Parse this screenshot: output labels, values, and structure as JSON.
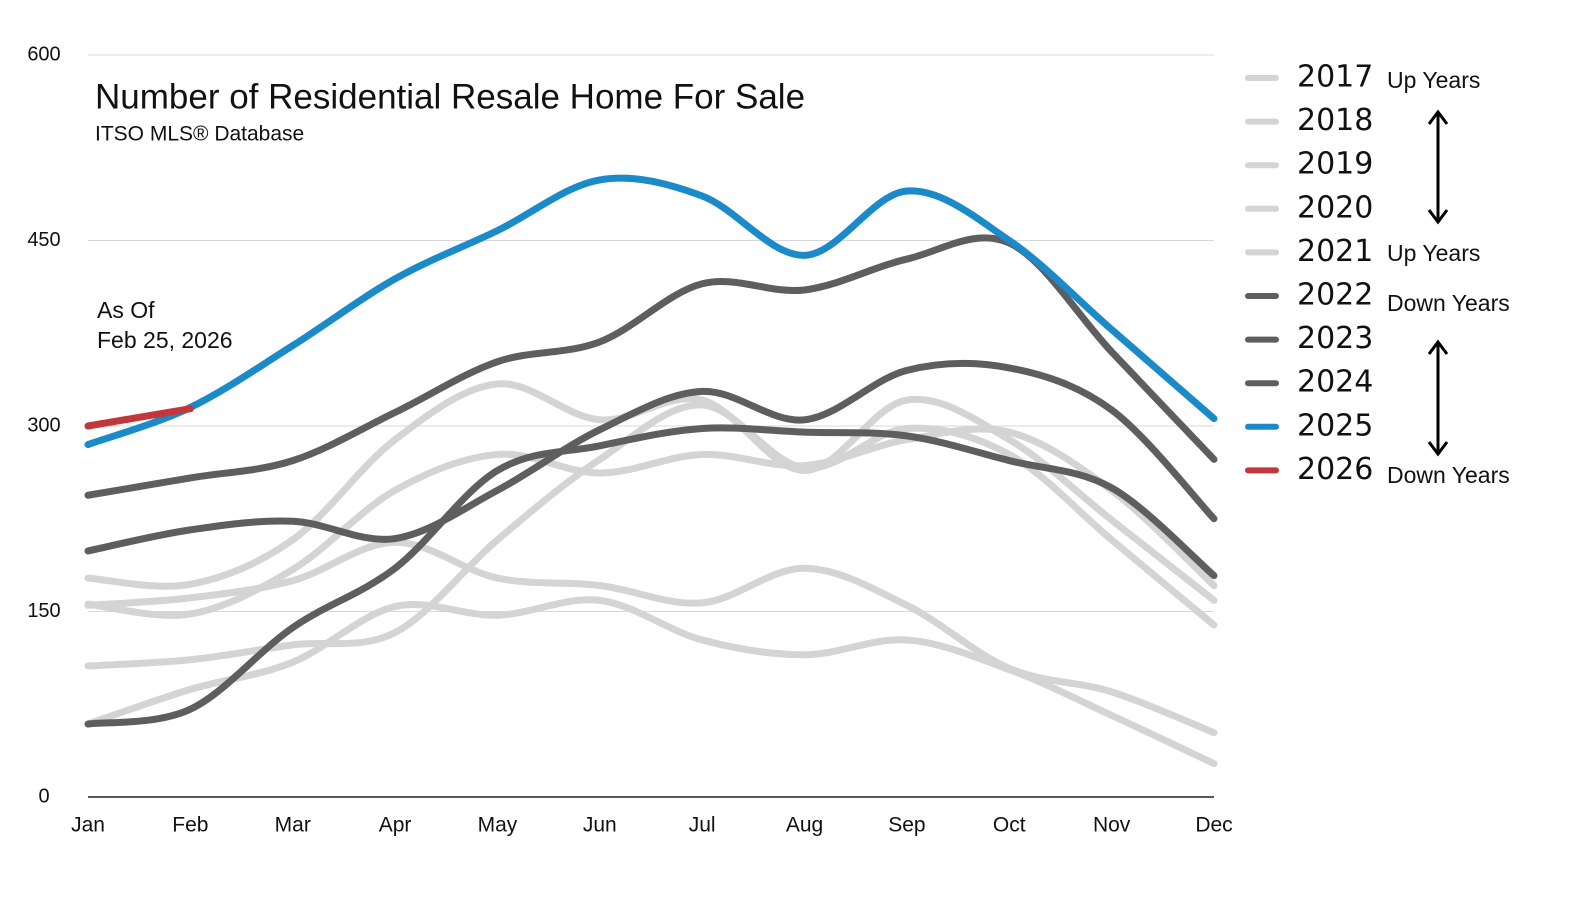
{
  "chart_data": {
    "type": "line",
    "title": "Number of Residential Resale Home For Sale",
    "subtitle": "ITSO MLS® Database",
    "annotations": [
      "Up Years",
      "Up Years",
      "Down Years",
      "Down Years"
    ],
    "note": [
      "As Of",
      "Feb 25, 2026"
    ],
    "categories": [
      "Jan",
      "Feb",
      "Mar",
      "Apr",
      "May",
      "Jun",
      "Jul",
      "Aug",
      "Sep",
      "Oct",
      "Nov",
      "Dec"
    ],
    "ylim": [
      0,
      600
    ],
    "yticks": [
      0,
      150,
      300,
      450,
      600
    ],
    "grid": true,
    "series": [
      {
        "name": "2017",
        "color": "#d4d4d4",
        "values": [
          177,
          172,
          208,
          289,
          334,
          305,
          321,
          264,
          321,
          289,
          224,
          159
        ]
      },
      {
        "name": "2018",
        "color": "#d4d4d4",
        "values": [
          156,
          148,
          184,
          248,
          277,
          262,
          277,
          268,
          289,
          295,
          248,
          171
        ]
      },
      {
        "name": "2019",
        "color": "#d4d4d4",
        "values": [
          155,
          161,
          175,
          206,
          177,
          171,
          157,
          185,
          155,
          104,
          85,
          52
        ]
      },
      {
        "name": "2020",
        "color": "#d4d4d4",
        "values": [
          106,
          111,
          123,
          133,
          208,
          273,
          317,
          266,
          298,
          277,
          208,
          139
        ]
      },
      {
        "name": "2021",
        "color": "#d4d4d4",
        "values": [
          59,
          87,
          109,
          154,
          147,
          159,
          127,
          115,
          127,
          103,
          66,
          27
        ]
      },
      {
        "name": "2022",
        "color": "#5e5e5e",
        "values": [
          244,
          258,
          272,
          311,
          352,
          368,
          415,
          410,
          435,
          448,
          360,
          273
        ]
      },
      {
        "name": "2023",
        "color": "#5e5e5e",
        "values": [
          199,
          216,
          223,
          209,
          248,
          297,
          328,
          305,
          345,
          347,
          313,
          225
        ]
      },
      {
        "name": "2024",
        "color": "#5e5e5e",
        "values": [
          59,
          71,
          137,
          185,
          264,
          284,
          298,
          295,
          292,
          272,
          250,
          179
        ]
      },
      {
        "name": "2025",
        "color": "#1b8ac9",
        "values": [
          285,
          315,
          365,
          419,
          458,
          499,
          486,
          438,
          490,
          450,
          378,
          306
        ]
      },
      {
        "name": "2026",
        "color": "#c0383c",
        "values": [
          300,
          314,
          null,
          null,
          null,
          null,
          null,
          null,
          null,
          null,
          null,
          null
        ]
      }
    ]
  }
}
